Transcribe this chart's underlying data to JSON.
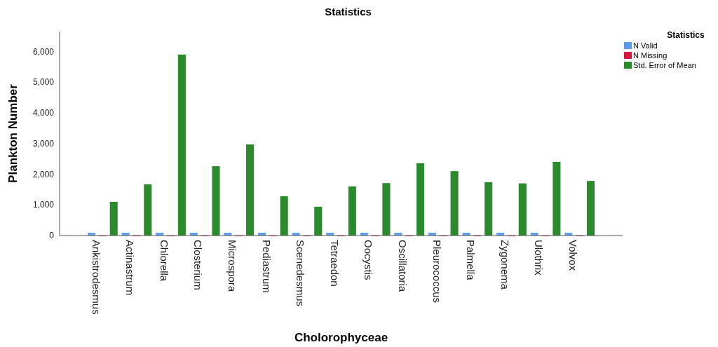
{
  "chart_data": {
    "type": "bar",
    "title": "Statistics",
    "xlabel": "Cholorophyceae",
    "ylabel": "Plankton Number",
    "legend_title": "Statistics",
    "legend": "top right",
    "categories": [
      "Ankistrodesmus",
      "Actinastrum",
      "Chlorella",
      "Closterium",
      "Microspora",
      "Pediastrum",
      "Scenedesmus",
      "Tetraedon",
      "Oocystis",
      "Oscillatoria",
      "Pleurococcus",
      "Palmella",
      "Zygonema",
      "Ulothrix",
      "Volvox"
    ],
    "series": [
      {
        "name": "N Valid",
        "color": "#5b9bea",
        "values": [
          90,
          90,
          90,
          90,
          90,
          90,
          90,
          90,
          90,
          90,
          90,
          90,
          90,
          90,
          90
        ]
      },
      {
        "name": "N Missing",
        "color": "#d6163c",
        "values": [
          0,
          0,
          0,
          0,
          0,
          0,
          0,
          0,
          0,
          0,
          0,
          0,
          0,
          0,
          0
        ]
      },
      {
        "name": "Std. Error of Mean",
        "color": "#2b8a2b",
        "values": [
          1100,
          1670,
          5900,
          2260,
          2970,
          1280,
          940,
          1600,
          1710,
          2360,
          2100,
          1740,
          1700,
          2400,
          1780
        ]
      }
    ],
    "ylim": [
      0,
      6650
    ],
    "yticks": [
      {
        "value": 0,
        "label": "0"
      },
      {
        "value": 1000,
        "label": "1,000"
      },
      {
        "value": 2000,
        "label": "2,000"
      },
      {
        "value": 3000,
        "label": "3,000"
      },
      {
        "value": 4000,
        "label": "4,000"
      },
      {
        "value": 5000,
        "label": "5,000"
      },
      {
        "value": 6000,
        "label": "6,000"
      }
    ],
    "grid": false
  }
}
